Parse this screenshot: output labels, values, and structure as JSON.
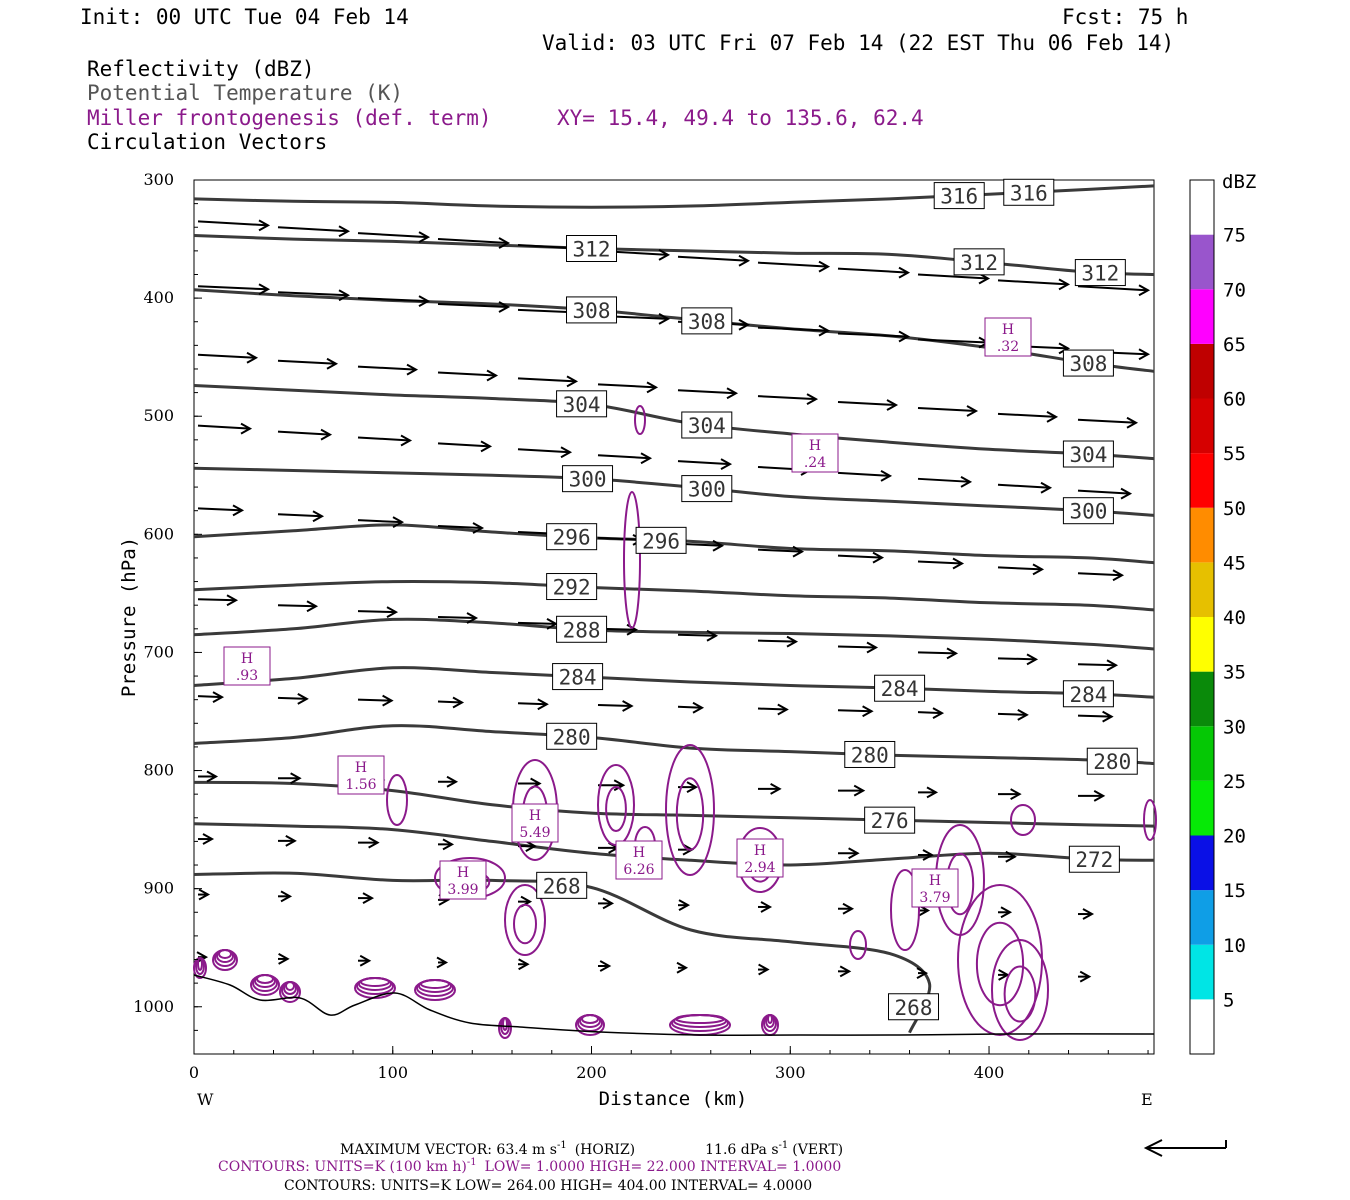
{
  "header": {
    "init": "Init: 00 UTC Tue 04 Feb 14",
    "fcst": "Fcst:   75 h",
    "valid": "Valid: 03 UTC Fri 07 Feb 14 (22 EST Thu 06 Feb 14)",
    "fields": [
      {
        "text": "Reflectivity (dBZ)",
        "color": "#000000"
      },
      {
        "text": "Potential Temperature (K)",
        "color": "#555555"
      },
      {
        "text": "Miller frontogenesis (def. term)",
        "color": "#8b1a8b"
      },
      {
        "text": "Circulation Vectors",
        "color": "#000000"
      }
    ],
    "xy": "XY=  15.4, 49.4 to 135.6, 62.4"
  },
  "chart_data": {
    "type": "cross-section",
    "xlabel": "Distance (km)",
    "ylabel": "Pressure (hPa)",
    "xlim": [
      0,
      483
    ],
    "ylim": [
      1040,
      300
    ],
    "x_ticks": [
      "0",
      "100",
      "200",
      "300",
      "400"
    ],
    "y_ticks": [
      "300",
      "400",
      "500",
      "600",
      "700",
      "800",
      "900",
      "1000"
    ],
    "left_end": "W",
    "right_end": "E",
    "colorbar": {
      "title": "dBZ",
      "labels": [
        "5",
        "10",
        "15",
        "20",
        "25",
        "30",
        "35",
        "40",
        "45",
        "50",
        "55",
        "60",
        "65",
        "70",
        "75"
      ],
      "colors": [
        "#ffffff",
        "#00e5e5",
        "#0f9ee6",
        "#0a10e6",
        "#06e906",
        "#05c805",
        "#0a8a0a",
        "#ffff00",
        "#e6c000",
        "#ff8c00",
        "#ff0000",
        "#d60000",
        "#bf0000",
        "#ff00ff",
        "#9955cc",
        "#ffffff"
      ]
    },
    "theta_contours": [
      {
        "label": "316",
        "points": [
          [
            0,
            316
          ],
          [
            50,
            318
          ],
          [
            100,
            319
          ],
          [
            150,
            322
          ],
          [
            200,
            323
          ],
          [
            250,
            322
          ],
          [
            300,
            319
          ],
          [
            350,
            316
          ],
          [
            400,
            312
          ],
          [
            450,
            308
          ],
          [
            483,
            305
          ]
        ]
      },
      {
        "label": "312",
        "points": [
          [
            0,
            347
          ],
          [
            50,
            350
          ],
          [
            100,
            352
          ],
          [
            150,
            355
          ],
          [
            200,
            358
          ],
          [
            250,
            360
          ],
          [
            300,
            362
          ],
          [
            350,
            363
          ],
          [
            400,
            370
          ],
          [
            450,
            378
          ],
          [
            483,
            380
          ]
        ]
      },
      {
        "label": "308",
        "points": [
          [
            0,
            393
          ],
          [
            50,
            398
          ],
          [
            100,
            402
          ],
          [
            150,
            405
          ],
          [
            200,
            410
          ],
          [
            250,
            418
          ],
          [
            300,
            426
          ],
          [
            350,
            432
          ],
          [
            400,
            442
          ],
          [
            450,
            455
          ],
          [
            483,
            462
          ]
        ]
      },
      {
        "label": "304",
        "points": [
          [
            0,
            474
          ],
          [
            50,
            478
          ],
          [
            100,
            482
          ],
          [
            150,
            485
          ],
          [
            200,
            490
          ],
          [
            250,
            506
          ],
          [
            300,
            515
          ],
          [
            350,
            522
          ],
          [
            400,
            528
          ],
          [
            450,
            532
          ],
          [
            483,
            536
          ]
        ]
      },
      {
        "label": "300",
        "points": [
          [
            0,
            544
          ],
          [
            50,
            546
          ],
          [
            100,
            548
          ],
          [
            150,
            550
          ],
          [
            200,
            553
          ],
          [
            250,
            560
          ],
          [
            300,
            568
          ],
          [
            350,
            572
          ],
          [
            400,
            576
          ],
          [
            450,
            580
          ],
          [
            483,
            584
          ]
        ]
      },
      {
        "label": "296",
        "points": [
          [
            0,
            602
          ],
          [
            50,
            597
          ],
          [
            100,
            592
          ],
          [
            150,
            598
          ],
          [
            200,
            603
          ],
          [
            250,
            606
          ],
          [
            300,
            612
          ],
          [
            350,
            614
          ],
          [
            400,
            618
          ],
          [
            450,
            620
          ],
          [
            483,
            624
          ]
        ]
      },
      {
        "label": "292",
        "points": [
          [
            0,
            647
          ],
          [
            50,
            643
          ],
          [
            100,
            640
          ],
          [
            150,
            641
          ],
          [
            200,
            645
          ],
          [
            250,
            648
          ],
          [
            300,
            652
          ],
          [
            350,
            654
          ],
          [
            400,
            658
          ],
          [
            450,
            660
          ],
          [
            483,
            664
          ]
        ]
      },
      {
        "label": "288",
        "points": [
          [
            0,
            685
          ],
          [
            50,
            680
          ],
          [
            100,
            672
          ],
          [
            150,
            675
          ],
          [
            200,
            681
          ],
          [
            250,
            683
          ],
          [
            300,
            684
          ],
          [
            350,
            686
          ],
          [
            400,
            689
          ],
          [
            450,
            693
          ],
          [
            483,
            697
          ]
        ]
      },
      {
        "label": "284",
        "points": [
          [
            0,
            728
          ],
          [
            50,
            722
          ],
          [
            100,
            713
          ],
          [
            150,
            717
          ],
          [
            200,
            721
          ],
          [
            250,
            725
          ],
          [
            300,
            728
          ],
          [
            350,
            730
          ],
          [
            400,
            733
          ],
          [
            450,
            735
          ],
          [
            483,
            738
          ]
        ]
      },
      {
        "label": "280",
        "points": [
          [
            0,
            777
          ],
          [
            50,
            772
          ],
          [
            100,
            762
          ],
          [
            150,
            767
          ],
          [
            200,
            772
          ],
          [
            250,
            781
          ],
          [
            300,
            784
          ],
          [
            350,
            787
          ],
          [
            400,
            789
          ],
          [
            450,
            791
          ],
          [
            483,
            794
          ]
        ]
      },
      {
        "label": "276",
        "points": [
          [
            0,
            810
          ],
          [
            50,
            811
          ],
          [
            100,
            817
          ],
          [
            150,
            829
          ],
          [
            200,
            836
          ],
          [
            250,
            838
          ],
          [
            300,
            840
          ],
          [
            350,
            842
          ],
          [
            400,
            844
          ],
          [
            450,
            846
          ],
          [
            483,
            847
          ]
        ]
      },
      {
        "label": "272",
        "points": [
          [
            0,
            845
          ],
          [
            50,
            847
          ],
          [
            100,
            850
          ],
          [
            150,
            860
          ],
          [
            200,
            870
          ],
          [
            250,
            876
          ],
          [
            300,
            880
          ],
          [
            350,
            875
          ],
          [
            400,
            870
          ],
          [
            450,
            875
          ],
          [
            483,
            876
          ]
        ]
      },
      {
        "label": "268",
        "points": [
          [
            0,
            888
          ],
          [
            50,
            887
          ],
          [
            100,
            893
          ],
          [
            150,
            893
          ],
          [
            200,
            899
          ],
          [
            250,
            935
          ],
          [
            300,
            945
          ],
          [
            350,
            955
          ],
          [
            370,
            980
          ],
          [
            360,
            1022
          ]
        ]
      }
    ],
    "vector_max": "MAXIMUM VECTOR:  63.4 m s",
    "vector_horiz": "(HORIZ)",
    "vector_vert": "11.6 dPa s",
    "vector_vert_tail": "(VERT)",
    "footer_purple": "CONTOURS:  UNITS=K (100 km h)",
    "footer_purple_tail": "LOW=   1.0000       HIGH=  22.000       INTERVAL=    1.0000",
    "footer_gray": "CONTOURS:  UNITS=K  LOW=   264.00       HIGH=   404.00       INTERVAL=     4.0000",
    "highs": [
      {
        "h": "H",
        "v": ".93"
      },
      {
        "h": "H",
        "v": "1.56"
      },
      {
        "h": "H",
        "v": "3.99"
      },
      {
        "h": "H",
        "v": "5.49"
      },
      {
        "h": "H",
        "v": "6.26"
      },
      {
        "h": "H",
        "v": "2.94"
      },
      {
        "h": "H",
        "v": "3.79"
      },
      {
        "h": "H",
        "v": ".24"
      },
      {
        "h": "H",
        "v": ".32"
      }
    ]
  }
}
